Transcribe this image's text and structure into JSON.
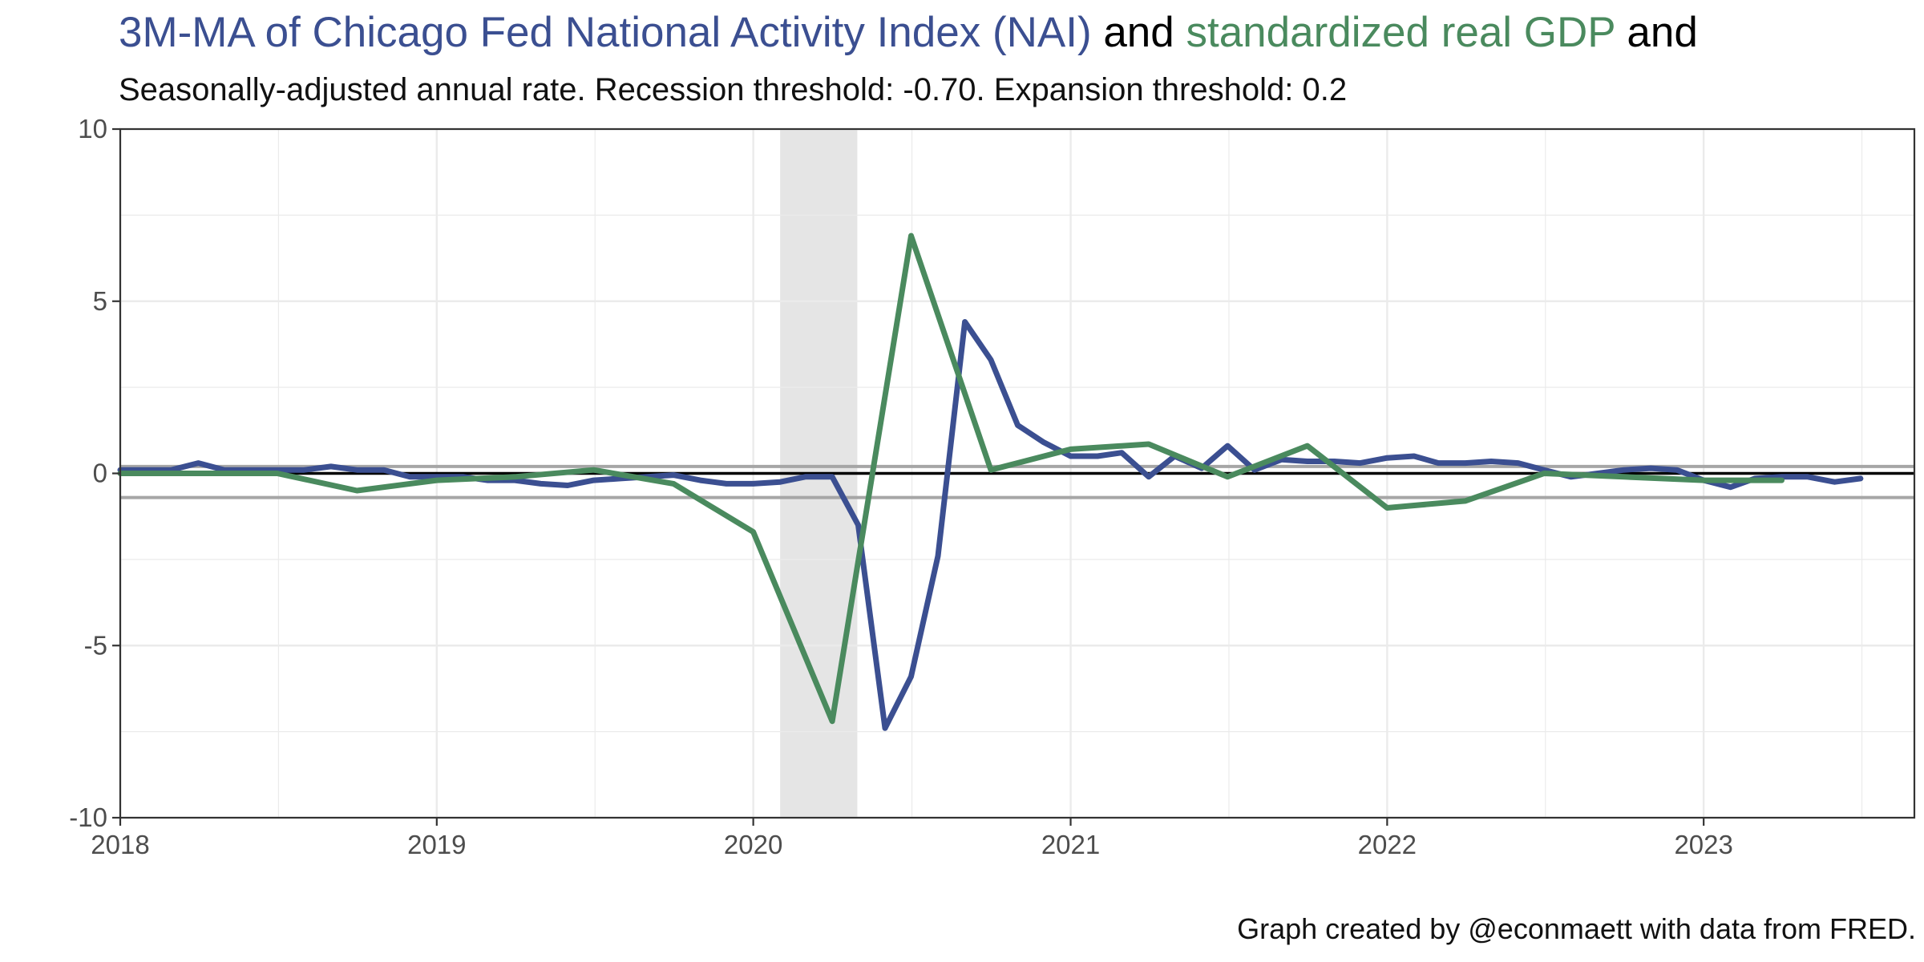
{
  "title": {
    "part1": "3M-MA of Chicago Fed National Activity Index (NAI)",
    "part2": " and ",
    "part3": "standardized real GDP",
    "part4": " and"
  },
  "subtitle": "Seasonally-adjusted annual rate. Recession threshold: -0.70. Expansion threshold: 0.2",
  "caption": "Graph created by @econmaett with data from FRED.",
  "colors": {
    "nai": "#3b4f91",
    "gdp": "#4a8a5e",
    "title_nai": "#3b4f91",
    "title_gdp": "#4a8a5e",
    "recession_shade": "#e5e5e5",
    "threshold_line": "#a6a6a6",
    "zero_line": "#000000",
    "grid": "#ebebeb"
  },
  "chart_data": {
    "type": "line",
    "x_type": "date",
    "xlim": [
      "2018-01-01",
      "2023-09-01"
    ],
    "ylim": [
      -10,
      10
    ],
    "y_ticks": [
      10,
      5,
      0,
      -5,
      -10
    ],
    "y_tick_labels": [
      "10",
      "5",
      "0",
      "-5",
      "-10"
    ],
    "x_ticks": [
      "2018-01-01",
      "2019-01-01",
      "2020-01-01",
      "2021-01-01",
      "2022-01-01",
      "2023-01-01"
    ],
    "x_tick_labels": [
      "2018",
      "2019",
      "2020",
      "2021",
      "2022",
      "2023"
    ],
    "grid": true,
    "recession_shading": [
      {
        "start": "2020-02-01",
        "end": "2020-04-30"
      }
    ],
    "hlines": [
      {
        "y": 0.2,
        "role": "expansion threshold"
      },
      {
        "y": -0.7,
        "role": "recession threshold"
      },
      {
        "y": 0,
        "role": "zero"
      }
    ],
    "series": [
      {
        "key": "nai",
        "x": [
          "2018-01-01",
          "2018-02-01",
          "2018-03-01",
          "2018-04-01",
          "2018-05-01",
          "2018-06-01",
          "2018-07-01",
          "2018-08-01",
          "2018-09-01",
          "2018-10-01",
          "2018-11-01",
          "2018-12-01",
          "2019-01-01",
          "2019-02-01",
          "2019-03-01",
          "2019-04-01",
          "2019-05-01",
          "2019-06-01",
          "2019-07-01",
          "2019-08-01",
          "2019-09-01",
          "2019-10-01",
          "2019-11-01",
          "2019-12-01",
          "2020-01-01",
          "2020-02-01",
          "2020-03-01",
          "2020-04-01",
          "2020-05-01",
          "2020-06-01",
          "2020-07-01",
          "2020-08-01",
          "2020-09-01",
          "2020-10-01",
          "2020-11-01",
          "2020-12-01",
          "2021-01-01",
          "2021-02-01",
          "2021-03-01",
          "2021-04-01",
          "2021-05-01",
          "2021-06-01",
          "2021-07-01",
          "2021-08-01",
          "2021-09-01",
          "2021-10-01",
          "2021-11-01",
          "2021-12-01",
          "2022-01-01",
          "2022-02-01",
          "2022-03-01",
          "2022-04-01",
          "2022-05-01",
          "2022-06-01",
          "2022-07-01",
          "2022-08-01",
          "2022-09-01",
          "2022-10-01",
          "2022-11-01",
          "2022-12-01",
          "2023-01-01",
          "2023-02-01",
          "2023-03-01",
          "2023-04-01",
          "2023-05-01",
          "2023-06-01",
          "2023-07-01"
        ],
        "y": [
          0.1,
          0.1,
          0.1,
          0.3,
          0.1,
          0.1,
          0.1,
          0.1,
          0.2,
          0.1,
          0.1,
          -0.1,
          -0.1,
          -0.1,
          -0.2,
          -0.2,
          -0.3,
          -0.35,
          -0.2,
          -0.15,
          -0.1,
          -0.05,
          -0.2,
          -0.3,
          -0.3,
          -0.25,
          -0.1,
          -0.1,
          -1.5,
          -7.4,
          -5.9,
          -2.4,
          4.4,
          3.3,
          1.4,
          0.9,
          0.5,
          0.5,
          0.6,
          -0.1,
          0.5,
          0.15,
          0.8,
          0.1,
          0.4,
          0.35,
          0.35,
          0.3,
          0.45,
          0.5,
          0.3,
          0.3,
          0.35,
          0.3,
          0.1,
          -0.1,
          0.0,
          0.1,
          0.15,
          0.1,
          -0.2,
          -0.4,
          -0.15,
          -0.1,
          -0.1,
          -0.25,
          -0.15
        ]
      },
      {
        "key": "gdp",
        "x": [
          "2018-01-01",
          "2018-04-01",
          "2018-07-01",
          "2018-10-01",
          "2019-01-01",
          "2019-04-01",
          "2019-07-01",
          "2019-10-01",
          "2020-01-01",
          "2020-04-01",
          "2020-07-01",
          "2020-10-01",
          "2021-01-01",
          "2021-04-01",
          "2021-07-01",
          "2021-10-01",
          "2022-01-01",
          "2022-04-01",
          "2022-07-01",
          "2022-10-01",
          "2023-01-01",
          "2023-04-01"
        ],
        "y": [
          0.0,
          0.0,
          0.0,
          -0.5,
          -0.2,
          -0.1,
          0.1,
          -0.3,
          -1.7,
          -7.2,
          6.9,
          0.1,
          0.7,
          0.85,
          -0.1,
          0.8,
          -1.0,
          -0.8,
          0.0,
          -0.1,
          -0.2,
          -0.2
        ]
      }
    ]
  }
}
